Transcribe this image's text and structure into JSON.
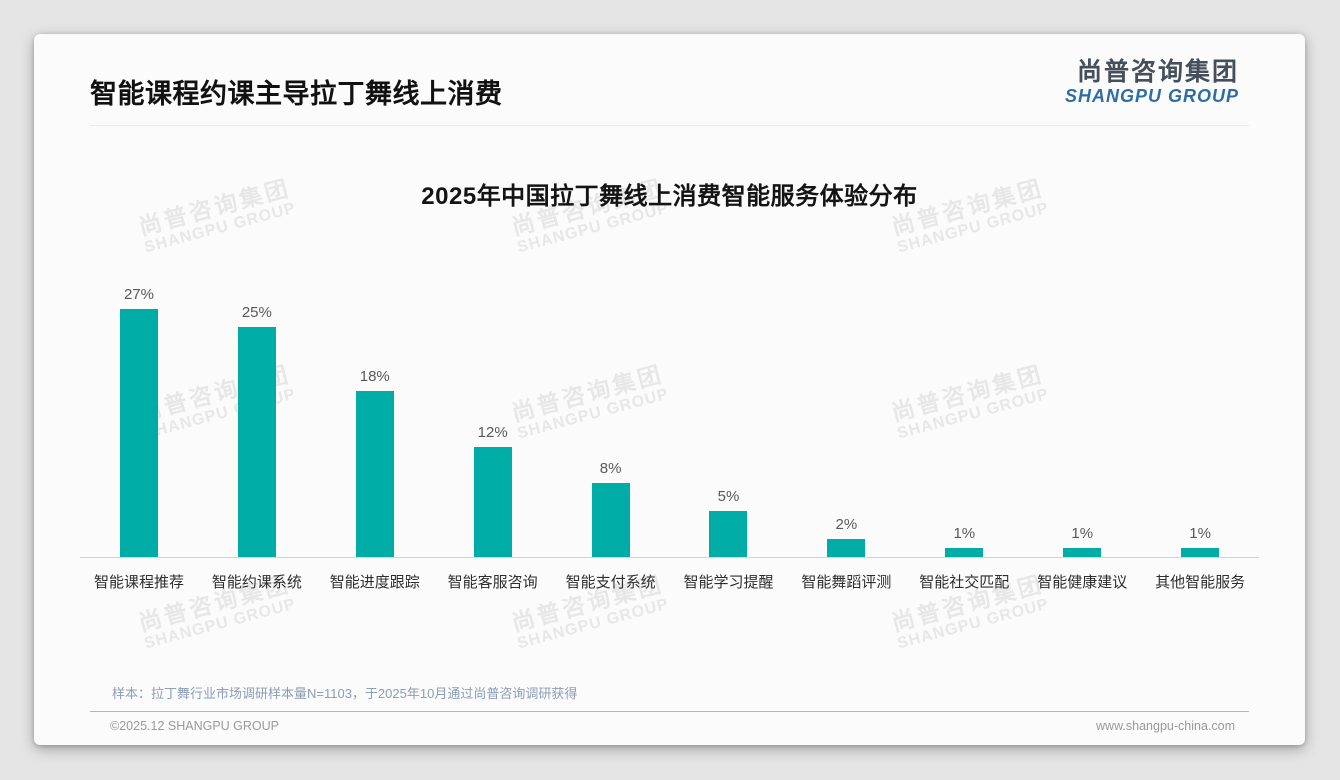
{
  "page": {
    "title": "智能课程约课主导拉丁舞线上消费"
  },
  "logo": {
    "cn": "尚普咨询集团",
    "en": "SHANGPU GROUP"
  },
  "watermark": {
    "line1": "尚普咨询集团",
    "line2": "SHANGPU GROUP"
  },
  "chart_data": {
    "type": "bar",
    "title": "2025年中国拉丁舞线上消费智能服务体验分布",
    "categories": [
      "智能课程推荐",
      "智能约课系统",
      "智能进度跟踪",
      "智能客服咨询",
      "智能支付系统",
      "智能学习提醒",
      "智能舞蹈评测",
      "智能社交匹配",
      "智能健康建议",
      "其他智能服务"
    ],
    "values": [
      27,
      25,
      18,
      12,
      8,
      5,
      2,
      1,
      1,
      1
    ],
    "unit": "%",
    "xlabel": "",
    "ylabel": "",
    "ylim": [
      0,
      30
    ],
    "grid": false,
    "legend": "none",
    "value_labels": true,
    "bar_color": "#00ada6"
  },
  "footnote": "样本：拉丁舞行业市场调研样本量N=1103，于2025年10月通过尚普咨询调研获得",
  "footer": {
    "left": "©2025.12 SHANGPU GROUP",
    "right": "www.shangpu-china.com"
  }
}
